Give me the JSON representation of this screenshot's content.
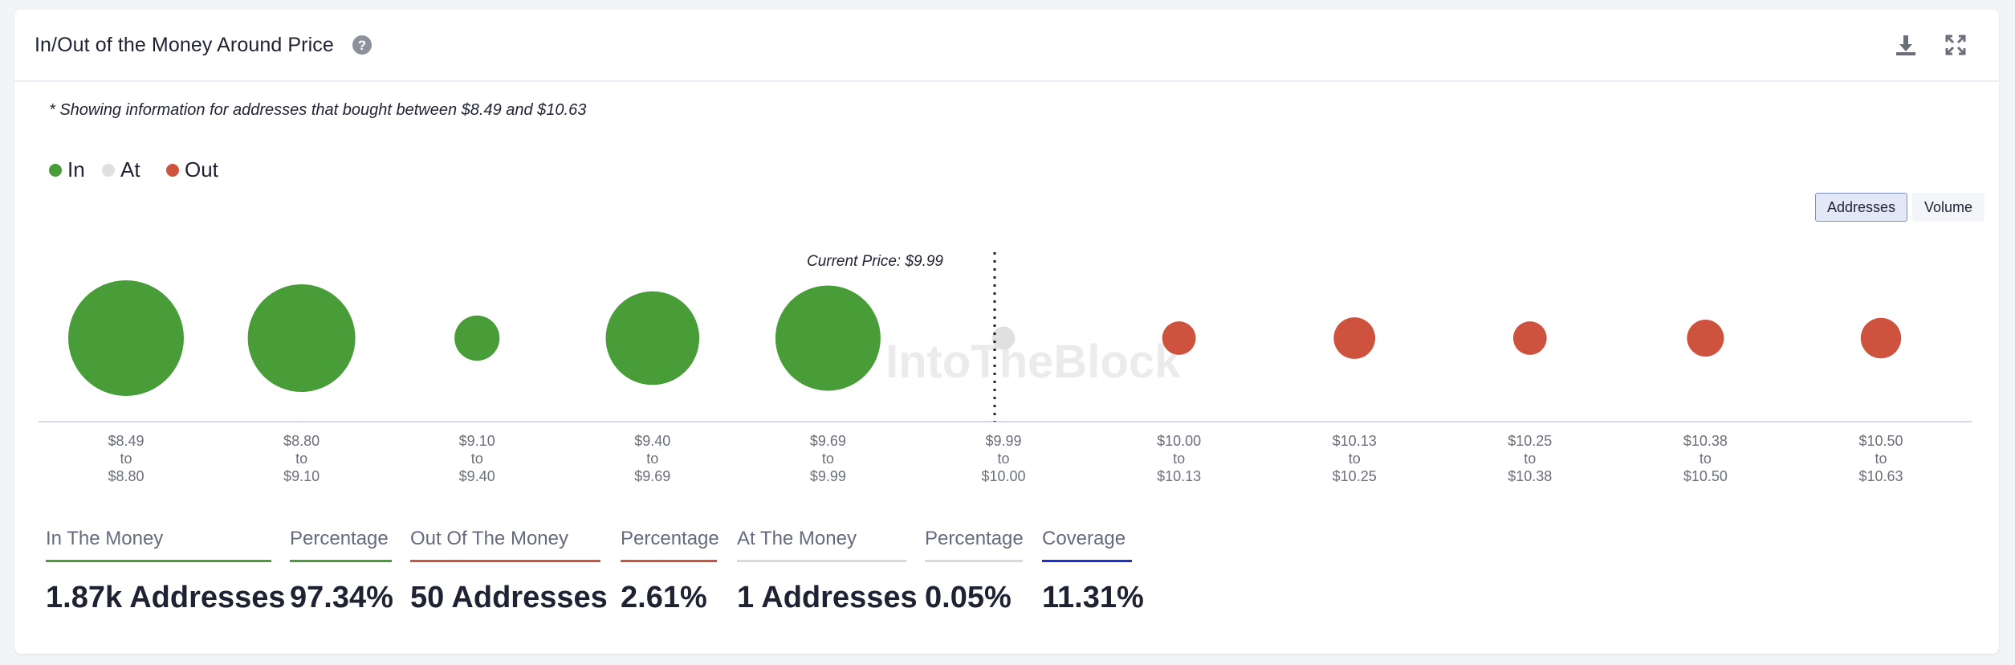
{
  "header": {
    "title": "In/Out of the Money Around Price",
    "help_icon": "question-circle-icon",
    "download_icon": "download-icon",
    "expand_icon": "expand-icon"
  },
  "note": "* Showing information for addresses that bought between $8.49 and $10.63",
  "legend": [
    {
      "label": "In",
      "color": "#499d38"
    },
    {
      "label": "At",
      "color": "#e0e0e0"
    },
    {
      "label": "Out",
      "color": "#cd533f"
    }
  ],
  "toggle": {
    "addresses_label": "Addresses",
    "volume_label": "Volume",
    "selected": "Addresses"
  },
  "watermark": "IntoTheBlock",
  "chart_data": {
    "type": "bubble",
    "current_price_label": "Current Price: $9.99",
    "current_price_bucket_index": 5,
    "colors": {
      "In": "#499d38",
      "At": "#e0e0e0",
      "Out": "#cd533f"
    },
    "buckets": [
      {
        "from": "$8.49",
        "to": "$8.80",
        "status": "In",
        "size": 1.0
      },
      {
        "from": "$8.80",
        "to": "$9.10",
        "status": "In",
        "size": 0.93
      },
      {
        "from": "$9.10",
        "to": "$9.40",
        "status": "In",
        "size": 0.39
      },
      {
        "from": "$9.40",
        "to": "$9.69",
        "status": "In",
        "size": 0.81
      },
      {
        "from": "$9.69",
        "to": "$9.99",
        "status": "In",
        "size": 0.91
      },
      {
        "from": "$9.99",
        "to": "$10.00",
        "status": "At",
        "size": 0.2
      },
      {
        "from": "$10.00",
        "to": "$10.13",
        "status": "Out",
        "size": 0.29
      },
      {
        "from": "$10.13",
        "to": "$10.25",
        "status": "Out",
        "size": 0.36
      },
      {
        "from": "$10.25",
        "to": "$10.38",
        "status": "Out",
        "size": 0.29
      },
      {
        "from": "$10.38",
        "to": "$10.50",
        "status": "Out",
        "size": 0.32
      },
      {
        "from": "$10.50",
        "to": "$10.63",
        "status": "Out",
        "size": 0.35
      }
    ],
    "range_word": "to"
  },
  "stats": [
    {
      "label": "In The Money",
      "value": "1.87k Addresses",
      "color": "#499d38"
    },
    {
      "label": "Percentage",
      "value": "97.34%",
      "color": "#499d38"
    },
    {
      "label": "Out Of The Money",
      "value": "50 Addresses",
      "color": "#cd533f"
    },
    {
      "label": "Percentage",
      "value": "2.61%",
      "color": "#cd533f"
    },
    {
      "label": "At The Money",
      "value": "1 Addresses",
      "color": "#d8d9de"
    },
    {
      "label": "Percentage",
      "value": "0.05%",
      "color": "#d8d9de"
    },
    {
      "label": "Coverage",
      "value": "11.31%",
      "color": "#1c2fd6"
    }
  ]
}
